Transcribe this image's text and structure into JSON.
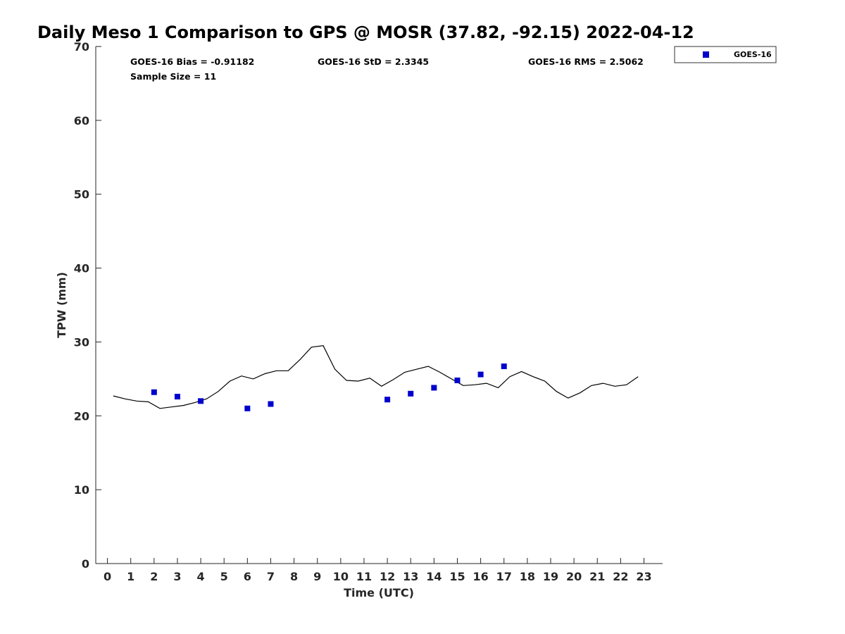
{
  "chart_data": {
    "type": "scatter",
    "title": "Daily Meso 1 Comparison to GPS @ MOSR (37.82, -92.15) 2022-04-12",
    "xlabel": "Time (UTC)",
    "ylabel": "TPW (mm)",
    "xlim": [
      -0.5,
      23.8
    ],
    "ylim": [
      0,
      70
    ],
    "x_ticks": [
      0,
      1,
      2,
      3,
      4,
      5,
      6,
      7,
      8,
      9,
      10,
      11,
      12,
      13,
      14,
      15,
      16,
      17,
      18,
      19,
      20,
      21,
      22,
      23
    ],
    "y_ticks": [
      0,
      10,
      20,
      30,
      40,
      50,
      60,
      70
    ],
    "grid": false,
    "legend_position": "top-right outside",
    "stats": {
      "bias": "GOES-16 Bias = -0.91182",
      "std": "GOES-16 StD = 2.3345",
      "rms": "GOES-16 RMS = 2.5062",
      "sample_size": "Sample Size = 11"
    },
    "gps_line": {
      "color": "#000000",
      "x": [
        0.25,
        0.75,
        1.25,
        1.75,
        2.25,
        2.75,
        3.25,
        3.75,
        4.25,
        4.75,
        5.25,
        5.75,
        6.25,
        6.75,
        7.25,
        7.75,
        8.25,
        8.75,
        9.25,
        9.75,
        10.25,
        10.75,
        11.25,
        11.75,
        12.25,
        12.75,
        13.25,
        13.75,
        14.25,
        14.75,
        15.25,
        15.75,
        16.25,
        16.75,
        17.25,
        17.75,
        18.25,
        18.75,
        19.25,
        19.75,
        20.25,
        20.75,
        21.25,
        21.75,
        22.25,
        22.75
      ],
      "y": [
        22.7,
        22.3,
        22.0,
        21.9,
        21.0,
        21.2,
        21.4,
        21.8,
        22.3,
        23.3,
        24.7,
        25.4,
        25.0,
        25.7,
        26.1,
        26.1,
        27.6,
        29.3,
        29.5,
        26.3,
        24.8,
        24.7,
        25.1,
        24.0,
        24.9,
        25.9,
        26.3,
        26.7,
        25.9,
        25.0,
        24.1,
        24.2,
        24.4,
        23.8,
        25.3,
        26.0,
        25.3,
        24.7,
        23.3,
        22.4,
        23.1,
        24.1,
        24.4,
        24.0,
        24.2,
        25.3
      ]
    },
    "series": [
      {
        "name": "GOES-16",
        "color": "#0000cc",
        "x": [
          2,
          3,
          4,
          6,
          7,
          12,
          13,
          14,
          15,
          16,
          17
        ],
        "y": [
          23.2,
          22.6,
          22.0,
          21.0,
          21.6,
          22.2,
          23.0,
          23.8,
          24.8,
          25.6,
          26.7
        ]
      }
    ]
  }
}
